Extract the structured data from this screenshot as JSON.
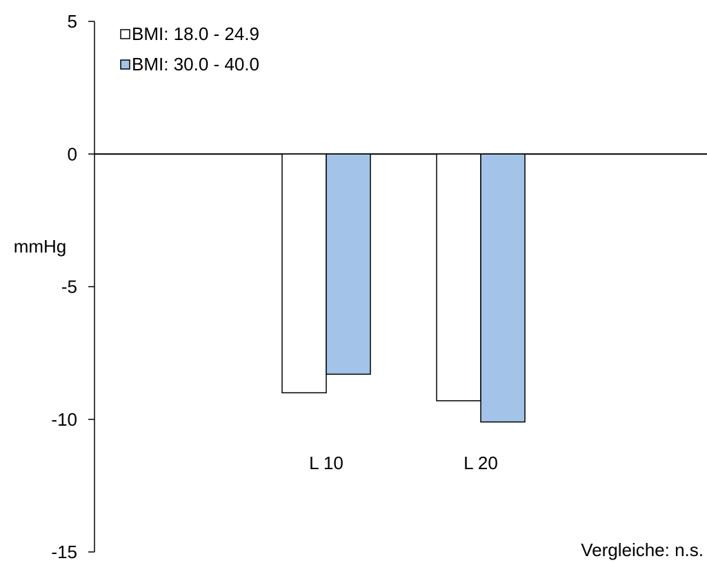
{
  "chart_data": {
    "type": "bar",
    "title": "",
    "xlabel": "",
    "ylabel": "mmHg",
    "ylim": [
      -15,
      5
    ],
    "yticks": [
      "5",
      "0",
      "-5",
      "-10",
      "-15"
    ],
    "categories": [
      "L 10",
      "L 20"
    ],
    "series": [
      {
        "name": "BMI: 18.0 - 24.9",
        "values": [
          -9.0,
          -9.3
        ]
      },
      {
        "name": "BMI: 30.0 - 40.0",
        "values": [
          -8.3,
          -10.1
        ]
      }
    ],
    "legend_position": "top-left",
    "grid": false,
    "annotation": "Vergleiche: n.s.",
    "colors": [
      "#ffffff",
      "#a3c4e8"
    ]
  }
}
